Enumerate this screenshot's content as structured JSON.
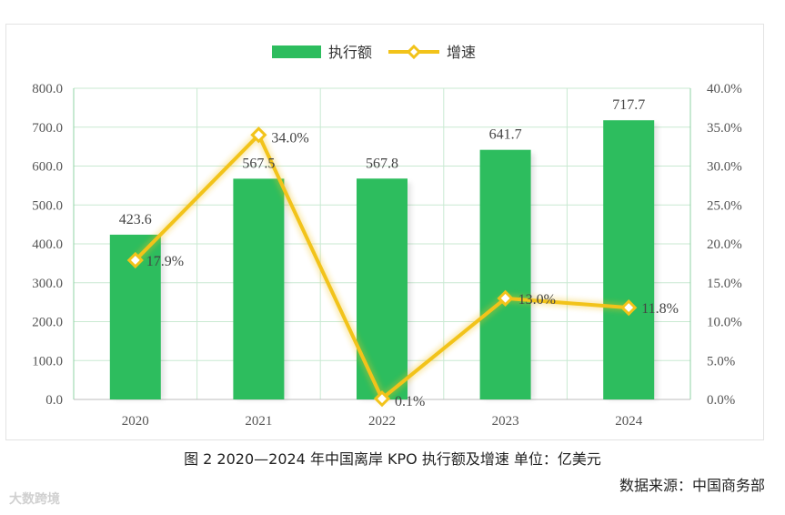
{
  "chart_data": {
    "type": "bar",
    "categories": [
      "2020",
      "2021",
      "2022",
      "2023",
      "2024"
    ],
    "series": [
      {
        "name": "执行额",
        "type": "bar",
        "axis": "left",
        "values": [
          423.6,
          567.5,
          567.8,
          641.7,
          717.7
        ],
        "labels": [
          "423.6",
          "567.5",
          "567.8",
          "641.7",
          "717.7"
        ],
        "color": "#2dbd5e"
      },
      {
        "name": "增速",
        "type": "line",
        "axis": "right",
        "values": [
          17.9,
          34.0,
          0.1,
          13.0,
          11.8
        ],
        "labels": [
          "17.9%",
          "34.0%",
          "0.1%",
          "13.0%",
          "11.8%"
        ],
        "color": "#f2c31a"
      }
    ],
    "y_left": {
      "min": 0,
      "max": 800,
      "ticks": [
        "0.0",
        "100.0",
        "200.0",
        "300.0",
        "400.0",
        "500.0",
        "600.0",
        "700.0",
        "800.0"
      ]
    },
    "y_right": {
      "min": 0,
      "max": 40,
      "ticks": [
        "0.0%",
        "5.0%",
        "10.0%",
        "15.0%",
        "20.0%",
        "25.0%",
        "30.0%",
        "35.0%",
        "40.0%"
      ]
    },
    "grid": true,
    "legend_position": "top-center",
    "colors": {
      "grid": "#c9e9d2",
      "axis_text": "#555555"
    }
  },
  "caption": "图 2 2020—2024 年中国离岸 KPO 执行额及增速 单位：亿美元",
  "source": "数据来源：中国商务部",
  "watermark": "大数跨境"
}
